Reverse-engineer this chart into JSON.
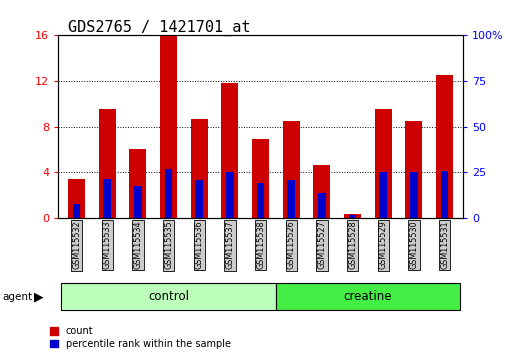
{
  "title": "GDS2765 / 1421701_at",
  "samples": [
    "GSM115532",
    "GSM115533",
    "GSM115534",
    "GSM115535",
    "GSM115536",
    "GSM115537",
    "GSM115538",
    "GSM115526",
    "GSM115527",
    "GSM115528",
    "GSM115529",
    "GSM115530",
    "GSM115531"
  ],
  "count_values": [
    3.4,
    9.5,
    6.0,
    16.0,
    8.7,
    11.8,
    6.9,
    8.5,
    4.6,
    0.3,
    9.5,
    8.5,
    12.5
  ],
  "percentile_values": [
    7.5,
    21.2,
    17.5,
    26.9,
    20.6,
    25.0,
    18.8,
    20.6,
    13.8,
    1.25,
    25.0,
    25.0,
    25.6
  ],
  "groups": [
    {
      "label": "control",
      "indices": [
        0,
        1,
        2,
        3,
        4,
        5,
        6
      ],
      "color": "#bbffbb"
    },
    {
      "label": "creatine",
      "indices": [
        7,
        8,
        9,
        10,
        11,
        12
      ],
      "color": "#44ee44"
    }
  ],
  "bar_color": "#cc0000",
  "percentile_color": "#0000cc",
  "ylim_left": [
    0,
    16
  ],
  "ylim_right": [
    0,
    100
  ],
  "yticks_left": [
    0,
    4,
    8,
    12,
    16
  ],
  "yticks_right": [
    0,
    25,
    50,
    75,
    100
  ],
  "bar_width": 0.55,
  "percentile_bar_width": 0.25,
  "title_fontsize": 11,
  "tick_label_fontsize": 6.5
}
